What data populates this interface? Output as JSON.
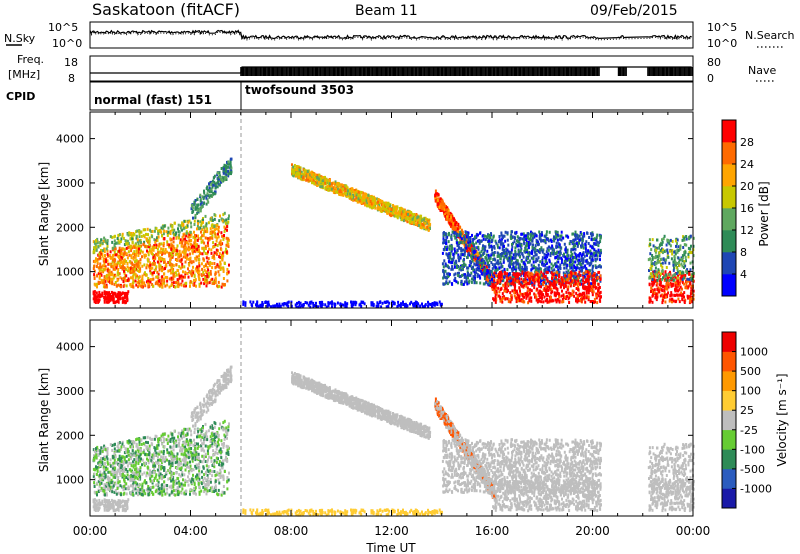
{
  "header": {
    "station": "Saskatoon (fitACF)",
    "beam": "Beam 11",
    "date": "09/Feb/2015"
  },
  "noise_panel": {
    "left_label": "N.Sky",
    "right_label": "N.Search",
    "left_ticks": [
      "10^5",
      "10^0"
    ],
    "right_ticks": [
      "10^5",
      "10^0"
    ]
  },
  "freq_panel": {
    "left_label_top": "Freq.",
    "left_label_bottom": "[MHz]",
    "left_ticks": [
      "18",
      "8"
    ],
    "right_label": "Nave",
    "right_ticks": [
      "80",
      "0"
    ]
  },
  "cpid": {
    "label": "CPID",
    "segments": [
      {
        "name": "normal (fast) 151",
        "start_hour": 0
      },
      {
        "name": "twofsound 3503",
        "start_hour": 6
      }
    ]
  },
  "chart_data": [
    {
      "type": "heatmap",
      "name": "power",
      "ylabel": "Slant Range [km]",
      "y_ticks": [
        1000,
        2000,
        3000,
        4000
      ],
      "ylim": [
        180,
        4600
      ],
      "xlim_hours": [
        0,
        24
      ],
      "colorbar": {
        "label": "Power [dB]",
        "ticks": [
          "4",
          "8",
          "12",
          "16",
          "20",
          "24",
          "28"
        ],
        "colors": [
          "#0000ff",
          "#1e46b4",
          "#2e8b57",
          "#5fa85f",
          "#c8c800",
          "#ffa500",
          "#ff6a00",
          "#ff0000"
        ]
      },
      "data_gaps_hours": [
        [
          20.3,
          21.0
        ],
        [
          21.35,
          22.2
        ]
      ]
    },
    {
      "type": "heatmap",
      "name": "velocity",
      "ylabel": "Slant Range [km]",
      "y_ticks": [
        1000,
        2000,
        3000,
        4000
      ],
      "ylim": [
        180,
        4600
      ],
      "xlim_hours": [
        0,
        24
      ],
      "colorbar": {
        "label": "Velocity [m s⁻¹]",
        "ticks": [
          "1000",
          "500",
          "100",
          "25",
          "-25",
          "-100",
          "-500",
          "-1000"
        ],
        "colors": [
          "#1a1aa8",
          "#2b5cbf",
          "#2e8b57",
          "#66cc33",
          "#bebebe",
          "#ffcc33",
          "#ff9900",
          "#ff5500",
          "#ee0000"
        ]
      },
      "data_gaps_hours": [
        [
          20.3,
          21.0
        ],
        [
          21.35,
          22.2
        ]
      ]
    }
  ],
  "time_axis": {
    "label": "Time UT",
    "ticks": [
      "00:00",
      "04:00",
      "08:00",
      "12:00",
      "16:00",
      "20:00",
      "00:00"
    ]
  }
}
